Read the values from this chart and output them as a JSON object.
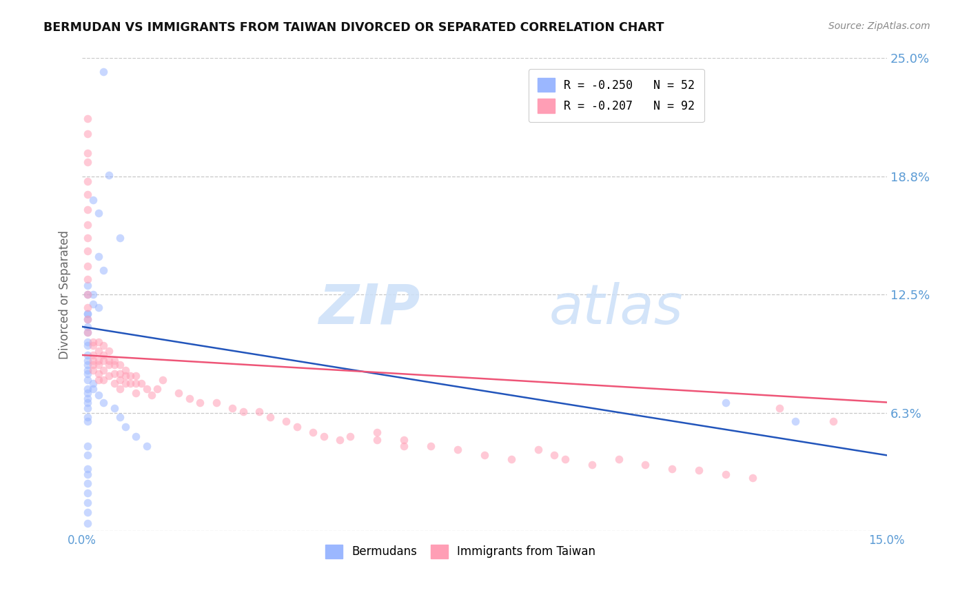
{
  "title": "BERMUDAN VS IMMIGRANTS FROM TAIWAN DIVORCED OR SEPARATED CORRELATION CHART",
  "source": "Source: ZipAtlas.com",
  "ylabel": "Divorced or Separated",
  "x_min": 0.0,
  "x_max": 0.15,
  "y_min": 0.0,
  "y_max": 0.25,
  "y_tick_vals": [
    0.0,
    0.0625,
    0.125,
    0.1875,
    0.25
  ],
  "y_tick_labels": [
    "",
    "6.3%",
    "12.5%",
    "18.8%",
    "25.0%"
  ],
  "x_tick_vals": [
    0.0,
    0.15
  ],
  "x_tick_labels": [
    "0.0%",
    "15.0%"
  ],
  "grid_color": "#c8c8c8",
  "background_color": "#ffffff",
  "tick_color": "#5b9bd5",
  "legend_label_1": "Bermudans",
  "legend_label_2": "Immigrants from Taiwan",
  "scatter_blue_color": "#9bb7ff",
  "scatter_pink_color": "#ff9eb5",
  "line_blue_color": "#2255bb",
  "line_pink_color": "#ee5577",
  "marker_size": 70,
  "marker_alpha": 0.55,
  "blue_line": {
    "x0": 0.0,
    "y0": 0.108,
    "x1": 0.15,
    "y1": 0.04
  },
  "pink_line": {
    "x0": 0.0,
    "y0": 0.093,
    "x1": 0.15,
    "y1": 0.068
  },
  "watermark_zip": "ZIP",
  "watermark_atlas": "atlas",
  "scatter_blue_x": [
    0.004,
    0.005,
    0.003,
    0.007,
    0.003,
    0.004,
    0.002,
    0.001,
    0.001,
    0.002,
    0.002,
    0.003,
    0.001,
    0.001,
    0.001,
    0.001,
    0.001,
    0.001,
    0.001,
    0.001,
    0.001,
    0.001,
    0.001,
    0.001,
    0.001,
    0.002,
    0.002,
    0.003,
    0.004,
    0.006,
    0.007,
    0.008,
    0.01,
    0.012,
    0.001,
    0.001,
    0.001,
    0.001,
    0.001,
    0.001,
    0.001,
    0.001,
    0.001,
    0.001,
    0.001,
    0.001,
    0.001,
    0.001,
    0.001,
    0.133,
    0.12,
    0.001
  ],
  "scatter_blue_y": [
    0.243,
    0.188,
    0.168,
    0.155,
    0.145,
    0.138,
    0.175,
    0.13,
    0.125,
    0.125,
    0.12,
    0.118,
    0.115,
    0.115,
    0.112,
    0.108,
    0.105,
    0.1,
    0.098,
    0.093,
    0.09,
    0.088,
    0.085,
    0.083,
    0.08,
    0.078,
    0.075,
    0.072,
    0.068,
    0.065,
    0.06,
    0.055,
    0.05,
    0.045,
    0.075,
    0.073,
    0.07,
    0.068,
    0.065,
    0.06,
    0.058,
    0.045,
    0.04,
    0.033,
    0.03,
    0.025,
    0.02,
    0.015,
    0.01,
    0.058,
    0.068,
    0.004
  ],
  "scatter_pink_x": [
    0.001,
    0.001,
    0.001,
    0.001,
    0.001,
    0.001,
    0.001,
    0.001,
    0.001,
    0.001,
    0.001,
    0.001,
    0.001,
    0.001,
    0.001,
    0.001,
    0.002,
    0.002,
    0.002,
    0.002,
    0.002,
    0.002,
    0.003,
    0.003,
    0.003,
    0.003,
    0.003,
    0.003,
    0.004,
    0.004,
    0.004,
    0.004,
    0.004,
    0.005,
    0.005,
    0.005,
    0.005,
    0.006,
    0.006,
    0.006,
    0.006,
    0.007,
    0.007,
    0.007,
    0.007,
    0.008,
    0.008,
    0.008,
    0.009,
    0.009,
    0.01,
    0.01,
    0.01,
    0.011,
    0.012,
    0.013,
    0.014,
    0.015,
    0.018,
    0.02,
    0.022,
    0.025,
    0.028,
    0.03,
    0.033,
    0.035,
    0.038,
    0.04,
    0.043,
    0.045,
    0.048,
    0.05,
    0.055,
    0.055,
    0.06,
    0.06,
    0.065,
    0.07,
    0.075,
    0.08,
    0.085,
    0.088,
    0.09,
    0.095,
    0.1,
    0.105,
    0.11,
    0.115,
    0.12,
    0.125,
    0.13,
    0.14
  ],
  "scatter_pink_y": [
    0.218,
    0.21,
    0.2,
    0.195,
    0.185,
    0.178,
    0.17,
    0.162,
    0.155,
    0.148,
    0.14,
    0.133,
    0.125,
    0.118,
    0.112,
    0.105,
    0.1,
    0.098,
    0.093,
    0.09,
    0.088,
    0.085,
    0.1,
    0.095,
    0.09,
    0.088,
    0.083,
    0.08,
    0.098,
    0.093,
    0.09,
    0.085,
    0.08,
    0.095,
    0.09,
    0.088,
    0.082,
    0.09,
    0.088,
    0.083,
    0.078,
    0.088,
    0.083,
    0.08,
    0.075,
    0.085,
    0.082,
    0.078,
    0.082,
    0.078,
    0.082,
    0.078,
    0.073,
    0.078,
    0.075,
    0.072,
    0.075,
    0.08,
    0.073,
    0.07,
    0.068,
    0.068,
    0.065,
    0.063,
    0.063,
    0.06,
    0.058,
    0.055,
    0.052,
    0.05,
    0.048,
    0.05,
    0.052,
    0.048,
    0.048,
    0.045,
    0.045,
    0.043,
    0.04,
    0.038,
    0.043,
    0.04,
    0.038,
    0.035,
    0.038,
    0.035,
    0.033,
    0.032,
    0.03,
    0.028,
    0.065,
    0.058
  ]
}
